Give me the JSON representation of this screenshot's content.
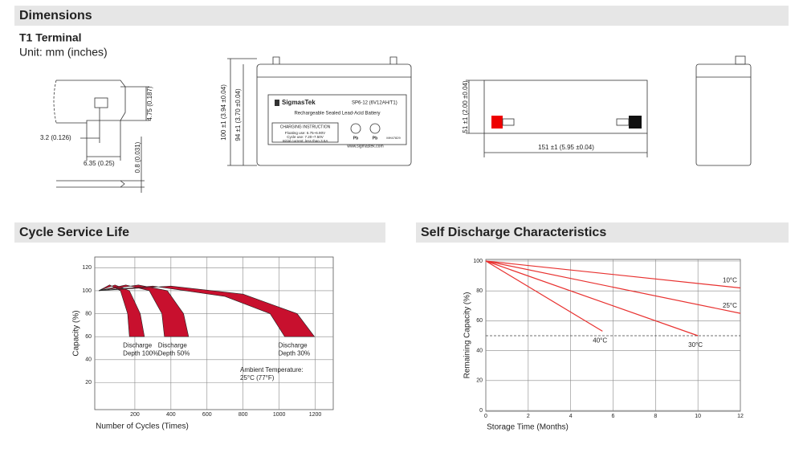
{
  "sections": {
    "dimensions": "Dimensions",
    "cycle": "Cycle Service Life",
    "self_discharge": "Self Discharge Characteristics"
  },
  "terminal": {
    "title": "T1 Terminal",
    "unit": "Unit: mm (inches)",
    "dims": [
      "4.75 (0.187)",
      "3.2 (0.126)",
      "6.35 (0.25)",
      "0.8 (0.031)"
    ]
  },
  "front_view": {
    "height": "100 ±1 (3.94 ±0.04)",
    "container_height": "94 ±1 (3.70 ±0.04)",
    "brand": "SigmasTek",
    "model": "SP6-12 (6V12AH/T1)",
    "description": "Rechargeable Sealed Lead-Acid Battery",
    "charging": {
      "title": "CHARGING INSTRUCTION",
      "lines": [
        "Floating use: 6.75~6.90V",
        "Cycle use: 7.20~7.50V",
        "Initial current: less than 3.6A"
      ]
    },
    "symbols": [
      "Pb",
      "Pb"
    ],
    "cert": "MH47829",
    "website": "www.sigmastek.com"
  },
  "top_view": {
    "width": "51 ±1 (2.00 ±0.04)",
    "length": "151 ±1 (5.95 ±0.04)"
  },
  "chart_data": [
    {
      "type": "band",
      "xlabel": "Number of Cycles (Times)",
      "ylabel": "Capacity (%)",
      "xlim": [
        0,
        1300
      ],
      "ylim": [
        0,
        130
      ],
      "xticks": [
        200,
        400,
        600,
        800,
        1000,
        1200
      ],
      "yticks": [
        20,
        40,
        60,
        80,
        100,
        120
      ],
      "grid": true,
      "annotation": [
        "Ambient Temperature:",
        "25°C (77°F)"
      ],
      "series": [
        {
          "label": [
            "Discharge",
            "Depth 100%"
          ],
          "color": "#c8102e",
          "inner_x": [
            0,
            60,
            120,
            160,
            170
          ],
          "inner_y": [
            100,
            105,
            100,
            80,
            60
          ],
          "outer_x": [
            0,
            90,
            170,
            230,
            253
          ],
          "outer_y": [
            100,
            105,
            100,
            80,
            60
          ]
        },
        {
          "label": [
            "Discharge",
            "Depth 50%"
          ],
          "color": "#c8102e",
          "inner_x": [
            0,
            150,
            280,
            350,
            364
          ],
          "inner_y": [
            100,
            105,
            100,
            80,
            60
          ],
          "outer_x": [
            0,
            220,
            380,
            470,
            498
          ],
          "outer_y": [
            100,
            105,
            100,
            80,
            60
          ]
        },
        {
          "label": [
            "Discharge",
            "Depth 30%"
          ],
          "color": "#c8102e",
          "inner_x": [
            0,
            300,
            700,
            950,
            1031
          ],
          "inner_y": [
            100,
            104,
            95,
            80,
            60
          ],
          "outer_x": [
            0,
            400,
            800,
            1100,
            1196
          ],
          "outer_y": [
            100,
            104,
            97,
            80,
            60
          ]
        }
      ]
    },
    {
      "type": "line",
      "xlabel": "Storage Time (Months)",
      "ylabel": "Remaining Capacity (%)",
      "xlim": [
        0,
        12
      ],
      "ylim": [
        0,
        100
      ],
      "xticks": [
        0,
        2,
        4,
        6,
        8,
        10,
        12
      ],
      "yticks": [
        0,
        20,
        40,
        60,
        80,
        100
      ],
      "grid": true,
      "reference_line": 50,
      "series": [
        {
          "name": "10°C",
          "color": "#e8312f",
          "x": [
            0,
            12
          ],
          "values": [
            100,
            82
          ]
        },
        {
          "name": "25°C",
          "color": "#e8312f",
          "x": [
            0,
            12
          ],
          "values": [
            100,
            65
          ]
        },
        {
          "name": "40°C",
          "color": "#e8312f",
          "x": [
            0,
            5.5
          ],
          "values": [
            100,
            53
          ]
        },
        {
          "name": "30°C",
          "color": "#e8312f",
          "x": [
            0,
            10
          ],
          "values": [
            100,
            50
          ]
        }
      ]
    }
  ]
}
